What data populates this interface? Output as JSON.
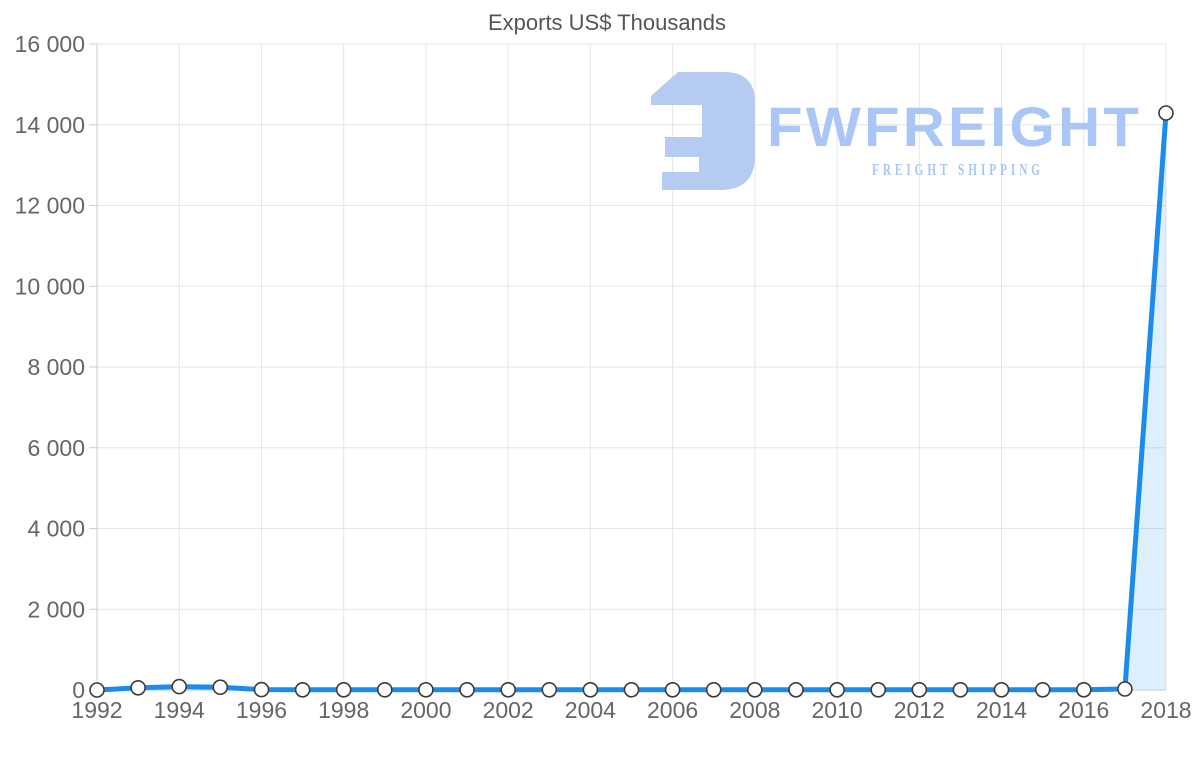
{
  "title": "Exports US$ Thousands",
  "watermark": {
    "brand": "FWFREIGHT",
    "tagline": "FREIGHT SHIPPING",
    "icon_color": "#b6cbf1",
    "text_color": "#a9c6f5"
  },
  "chart_data": {
    "type": "area",
    "title": "Exports US$ Thousands",
    "x": [
      1992,
      1993,
      1994,
      1995,
      1996,
      1997,
      1998,
      1999,
      2000,
      2001,
      2002,
      2003,
      2004,
      2005,
      2006,
      2007,
      2008,
      2009,
      2010,
      2011,
      2012,
      2013,
      2014,
      2015,
      2016,
      2017,
      2018
    ],
    "values": [
      0,
      55,
      85,
      70,
      10,
      5,
      5,
      5,
      5,
      5,
      5,
      5,
      5,
      5,
      5,
      5,
      5,
      5,
      5,
      5,
      5,
      5,
      5,
      5,
      5,
      25,
      14291
    ],
    "xlabel": "",
    "ylabel": "",
    "xlim": [
      1992,
      2018
    ],
    "ylim": [
      0,
      16000
    ],
    "grid": true,
    "legend": "none",
    "x_ticks": [
      1992,
      1994,
      1996,
      1998,
      2000,
      2002,
      2004,
      2006,
      2008,
      2010,
      2012,
      2014,
      2016,
      2018
    ],
    "y_ticks": [
      {
        "value": 0,
        "label": "0"
      },
      {
        "value": 2000,
        "label": "2 000"
      },
      {
        "value": 4000,
        "label": "4 000"
      },
      {
        "value": 6000,
        "label": "6 000"
      },
      {
        "value": 8000,
        "label": "8 000"
      },
      {
        "value": 10000,
        "label": "10 000"
      },
      {
        "value": 12000,
        "label": "12 000"
      },
      {
        "value": 14000,
        "label": "14 000"
      },
      {
        "value": 16000,
        "label": "16 000"
      }
    ],
    "colors": {
      "line": "#1b8ceb",
      "area_fill": "rgba(27,140,235,0.15)",
      "marker_fill": "#ffffff",
      "marker_stroke": "#3b3b3b",
      "grid": "#e6e6e6",
      "axis": "#cccccc",
      "tick_label": "#666666",
      "title": "#555555"
    }
  }
}
